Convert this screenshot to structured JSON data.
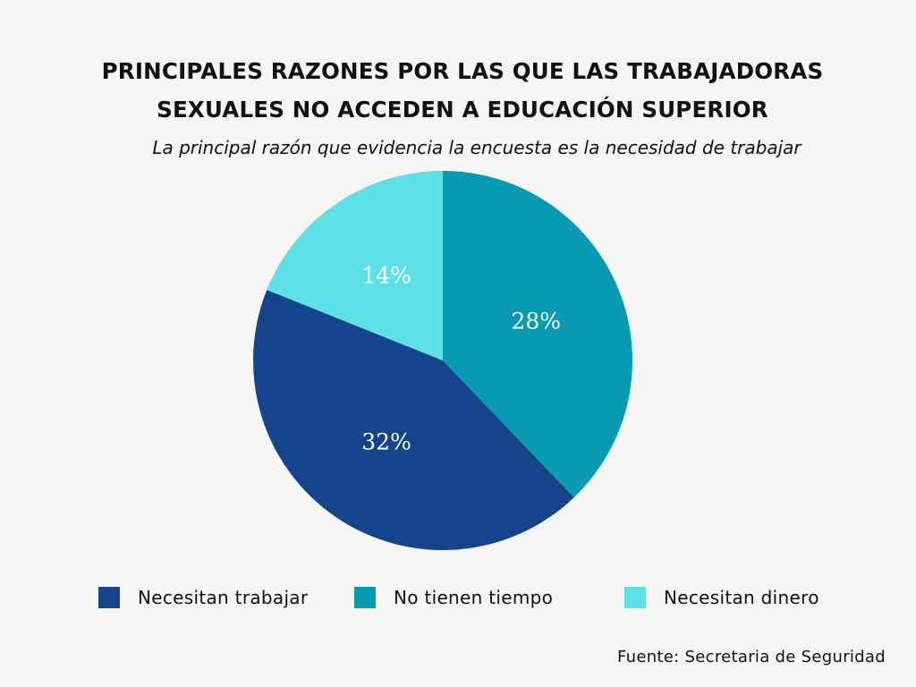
{
  "chart_data": {
    "type": "pie",
    "title_lines": [
      "PRINCIPALES RAZONES POR LAS QUE LAS TRABAJADORAS",
      "SEXUALES NO ACCEDEN A EDUCACIÓN SUPERIOR"
    ],
    "subtitle": "La principal razón que evidencia la encuesta es la necesidad de trabajar",
    "slices": [
      {
        "name": "No tienen tiempo",
        "value": 28,
        "label": "28%",
        "color": "#0899b3"
      },
      {
        "name": "Necesitan trabajar",
        "value": 32,
        "label": "32%",
        "color": "#16448c"
      },
      {
        "name": "Necesitan dinero",
        "value": 14,
        "label": "14%",
        "color": "#5de0e6"
      }
    ],
    "legend": {
      "placement": "bottom",
      "items": [
        {
          "label": "Necesitan trabajar",
          "color": "#16448c"
        },
        {
          "label": "No tienen tiempo",
          "color": "#0899b3"
        },
        {
          "label": "Necesitan dinero",
          "color": "#5de0e6"
        }
      ]
    },
    "source": "Fuente: Secretaria de Seguridad"
  }
}
